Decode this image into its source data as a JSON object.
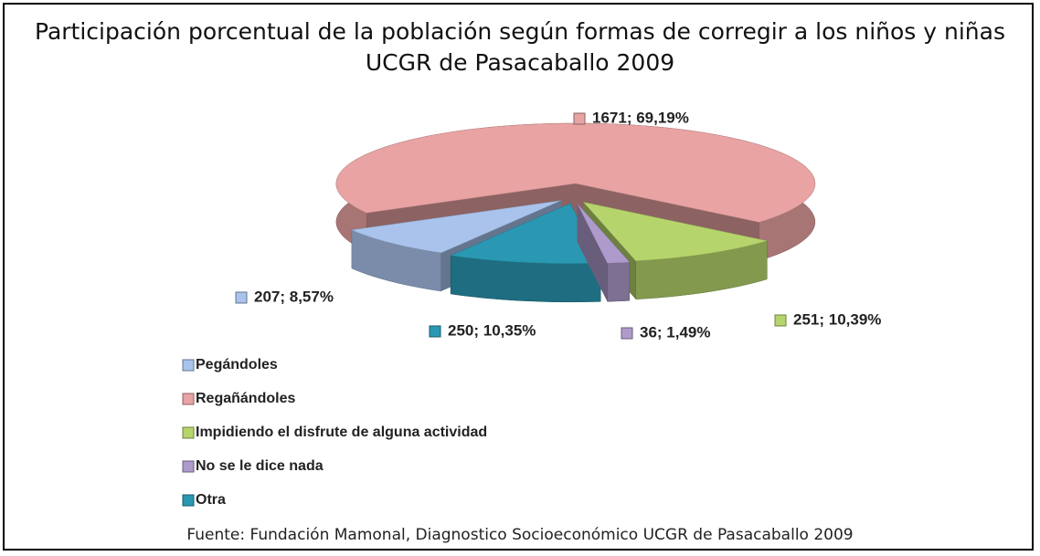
{
  "chart_data": {
    "type": "pie",
    "title": "Participación porcentual de la población según formas de corregir a los niños y niñas UCGR de Pasacaballo 2009",
    "categories": [
      "Pegándoles",
      "Regañándoles",
      "Impidiendo el disfrute de alguna actividad",
      "No se le dice nada",
      "Otra"
    ],
    "values": [
      207,
      1671,
      251,
      36,
      250
    ],
    "value_labels": [
      "207; 8,57%",
      "1671; 69,19%",
      "251; 10,39%",
      "36; 1,49%",
      "250; 10,35%"
    ],
    "colors": [
      "#a9c3ec",
      "#e9a3a3",
      "#b6d46c",
      "#ae9bcc",
      "#2a98b2"
    ],
    "legend": "bottom-left",
    "source": "Fuente: Fundación Mamonal, Diagnostico Socioeconómico UCGR de Pasacaballo 2009"
  }
}
